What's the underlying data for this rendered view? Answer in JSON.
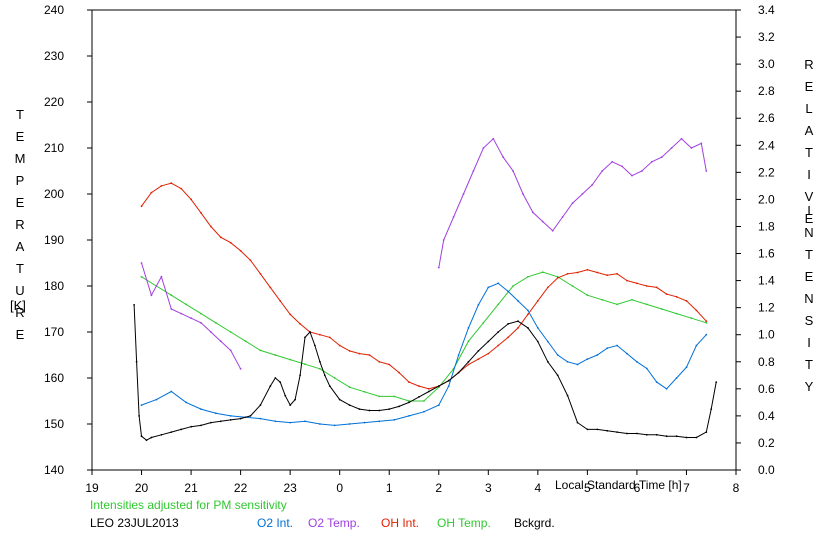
{
  "chart_data": {
    "type": "line",
    "left_axis": {
      "label": "TEMPERATURE",
      "unit": "[K]",
      "range": [
        140,
        240
      ],
      "ticks": [
        "140",
        "150",
        "160",
        "170",
        "180",
        "190",
        "200",
        "210",
        "220",
        "230",
        "240"
      ]
    },
    "right_axis": {
      "label": "RELATIVE INTENSITY",
      "range": [
        0.0,
        3.4
      ],
      "ticks": [
        "0.0",
        "0.2",
        "0.4",
        "0.6",
        "0.8",
        "1.0",
        "1.2",
        "1.4",
        "1.6",
        "1.8",
        "2.0",
        "2.2",
        "2.4",
        "2.6",
        "2.8",
        "3.0",
        "3.2",
        "3.4"
      ]
    },
    "x_axis": {
      "label": "Local Standard Time [h]",
      "range": [
        19,
        32
      ],
      "ticks": [
        "19",
        "20",
        "21",
        "22",
        "23",
        "0",
        "1",
        "2",
        "3",
        "4",
        "5",
        "6",
        "7",
        "8"
      ]
    },
    "note": "Intensities adjusted for PM sensitivity",
    "site_date": "LEO 23JUL2013",
    "series": [
      {
        "name": "O2 Int.",
        "axis": "right",
        "color": "#0070d8",
        "x": [
          20.0,
          20.3,
          20.6,
          20.9,
          21.2,
          21.5,
          21.8,
          22.1,
          22.4,
          22.7,
          23.0,
          23.3,
          23.6,
          23.9,
          24.2,
          24.5,
          24.8,
          25.1,
          25.4,
          25.7,
          26.0,
          26.2,
          26.4,
          26.6,
          26.8,
          27.0,
          27.2,
          27.4,
          27.6,
          27.8,
          28.0,
          28.2,
          28.4,
          28.6,
          28.8,
          29.0,
          29.2,
          29.4,
          29.6,
          29.8,
          30.0,
          30.2,
          30.4,
          30.6,
          30.8,
          31.0,
          31.2,
          31.4
        ],
        "values": [
          0.48,
          0.52,
          0.58,
          0.5,
          0.45,
          0.42,
          0.4,
          0.39,
          0.38,
          0.36,
          0.35,
          0.36,
          0.34,
          0.33,
          0.34,
          0.35,
          0.36,
          0.37,
          0.4,
          0.43,
          0.48,
          0.62,
          0.85,
          1.05,
          1.22,
          1.35,
          1.38,
          1.32,
          1.25,
          1.18,
          1.05,
          0.95,
          0.85,
          0.8,
          0.78,
          0.82,
          0.85,
          0.9,
          0.92,
          0.86,
          0.8,
          0.75,
          0.65,
          0.6,
          0.68,
          0.76,
          0.92,
          1.0
        ]
      },
      {
        "name": "O2 Temp.",
        "axis": "left",
        "color": "#a040e0",
        "x": [
          20.0,
          20.2,
          20.4,
          20.6,
          20.8,
          21.0,
          21.2,
          21.4,
          21.6,
          21.8,
          22.0,
          26.0,
          26.1,
          26.3,
          26.5,
          26.7,
          26.9,
          27.1,
          27.3,
          27.5,
          27.7,
          27.9,
          28.1,
          28.3,
          28.5,
          28.7,
          28.9,
          29.1,
          29.3,
          29.5,
          29.7,
          29.9,
          30.1,
          30.3,
          30.5,
          30.7,
          30.9,
          31.1,
          31.3,
          31.4
        ],
        "values": [
          185,
          178,
          182,
          175,
          174,
          173,
          172,
          170,
          168,
          166,
          162,
          184,
          190,
          195,
          200,
          205,
          210,
          212,
          208,
          205,
          200,
          196,
          194,
          192,
          195,
          198,
          200,
          202,
          205,
          207,
          206,
          204,
          205,
          207,
          208,
          210,
          212,
          210,
          211,
          205
        ]
      },
      {
        "name": "OH Int.",
        "axis": "right",
        "color": "#e02000",
        "x": [
          20.0,
          20.2,
          20.4,
          20.6,
          20.8,
          21.0,
          21.2,
          21.4,
          21.6,
          21.8,
          22.0,
          22.2,
          22.4,
          22.6,
          22.8,
          23.0,
          23.2,
          23.4,
          23.6,
          23.8,
          24.0,
          24.2,
          24.4,
          24.6,
          24.8,
          25.0,
          25.2,
          25.4,
          25.6,
          25.8,
          26.0,
          26.2,
          26.4,
          26.6,
          26.8,
          27.0,
          27.2,
          27.4,
          27.6,
          27.8,
          28.0,
          28.2,
          28.4,
          28.6,
          28.8,
          29.0,
          29.2,
          29.4,
          29.6,
          29.8,
          30.0,
          30.2,
          30.4,
          30.6,
          30.8,
          31.0,
          31.2,
          31.4
        ],
        "values": [
          1.95,
          2.05,
          2.1,
          2.12,
          2.08,
          2.0,
          1.9,
          1.8,
          1.72,
          1.68,
          1.62,
          1.55,
          1.45,
          1.35,
          1.25,
          1.15,
          1.08,
          1.02,
          1.0,
          0.98,
          0.92,
          0.88,
          0.86,
          0.85,
          0.8,
          0.78,
          0.72,
          0.65,
          0.62,
          0.6,
          0.62,
          0.66,
          0.72,
          0.78,
          0.82,
          0.86,
          0.92,
          0.98,
          1.05,
          1.15,
          1.25,
          1.35,
          1.42,
          1.45,
          1.46,
          1.48,
          1.46,
          1.44,
          1.45,
          1.4,
          1.38,
          1.36,
          1.35,
          1.3,
          1.28,
          1.25,
          1.18,
          1.1
        ]
      },
      {
        "name": "OH Temp.",
        "axis": "left",
        "color": "#30c830",
        "x": [
          20.0,
          20.3,
          20.6,
          20.9,
          21.2,
          21.5,
          21.8,
          22.1,
          22.4,
          22.7,
          23.0,
          23.3,
          23.6,
          23.9,
          24.2,
          24.5,
          24.8,
          25.1,
          25.4,
          25.7,
          26.0,
          26.3,
          26.6,
          26.9,
          27.2,
          27.5,
          27.8,
          28.1,
          28.4,
          28.7,
          29.0,
          29.3,
          29.6,
          29.9,
          30.2,
          30.5,
          30.8,
          31.1,
          31.4
        ],
        "values": [
          182,
          180,
          178,
          176,
          174,
          172,
          170,
          168,
          166,
          165,
          164,
          163,
          162,
          160,
          158,
          157,
          156,
          156,
          155,
          155,
          158,
          162,
          168,
          172,
          176,
          180,
          182,
          183,
          182,
          180,
          178,
          177,
          176,
          177,
          176,
          175,
          174,
          173,
          172
        ]
      },
      {
        "name": "Bckgrd.",
        "axis": "right",
        "color": "#000000",
        "x": [
          19.85,
          19.9,
          19.95,
          20.0,
          20.1,
          20.2,
          20.4,
          20.6,
          20.8,
          21.0,
          21.2,
          21.4,
          21.6,
          21.8,
          22.0,
          22.2,
          22.4,
          22.6,
          22.7,
          22.8,
          22.9,
          23.0,
          23.1,
          23.2,
          23.3,
          23.4,
          23.5,
          23.6,
          23.7,
          23.8,
          24.0,
          24.2,
          24.4,
          24.6,
          24.8,
          25.0,
          25.2,
          25.4,
          25.6,
          25.8,
          26.0,
          26.2,
          26.4,
          26.6,
          26.8,
          27.0,
          27.2,
          27.4,
          27.6,
          27.8,
          28.0,
          28.2,
          28.4,
          28.6,
          28.8,
          29.0,
          29.2,
          29.4,
          29.6,
          29.8,
          30.0,
          30.2,
          30.4,
          30.6,
          30.8,
          31.0,
          31.2,
          31.4,
          31.5,
          31.6
        ],
        "values": [
          1.22,
          0.8,
          0.4,
          0.25,
          0.22,
          0.24,
          0.26,
          0.28,
          0.3,
          0.32,
          0.33,
          0.35,
          0.36,
          0.37,
          0.38,
          0.4,
          0.48,
          0.62,
          0.68,
          0.65,
          0.55,
          0.48,
          0.52,
          0.7,
          0.98,
          1.02,
          0.92,
          0.8,
          0.7,
          0.62,
          0.52,
          0.48,
          0.45,
          0.44,
          0.44,
          0.45,
          0.47,
          0.5,
          0.54,
          0.58,
          0.62,
          0.66,
          0.72,
          0.8,
          0.88,
          0.95,
          1.02,
          1.08,
          1.1,
          1.05,
          0.95,
          0.8,
          0.7,
          0.55,
          0.35,
          0.3,
          0.3,
          0.29,
          0.28,
          0.27,
          0.27,
          0.26,
          0.26,
          0.25,
          0.25,
          0.24,
          0.24,
          0.28,
          0.45,
          0.65
        ]
      }
    ]
  }
}
